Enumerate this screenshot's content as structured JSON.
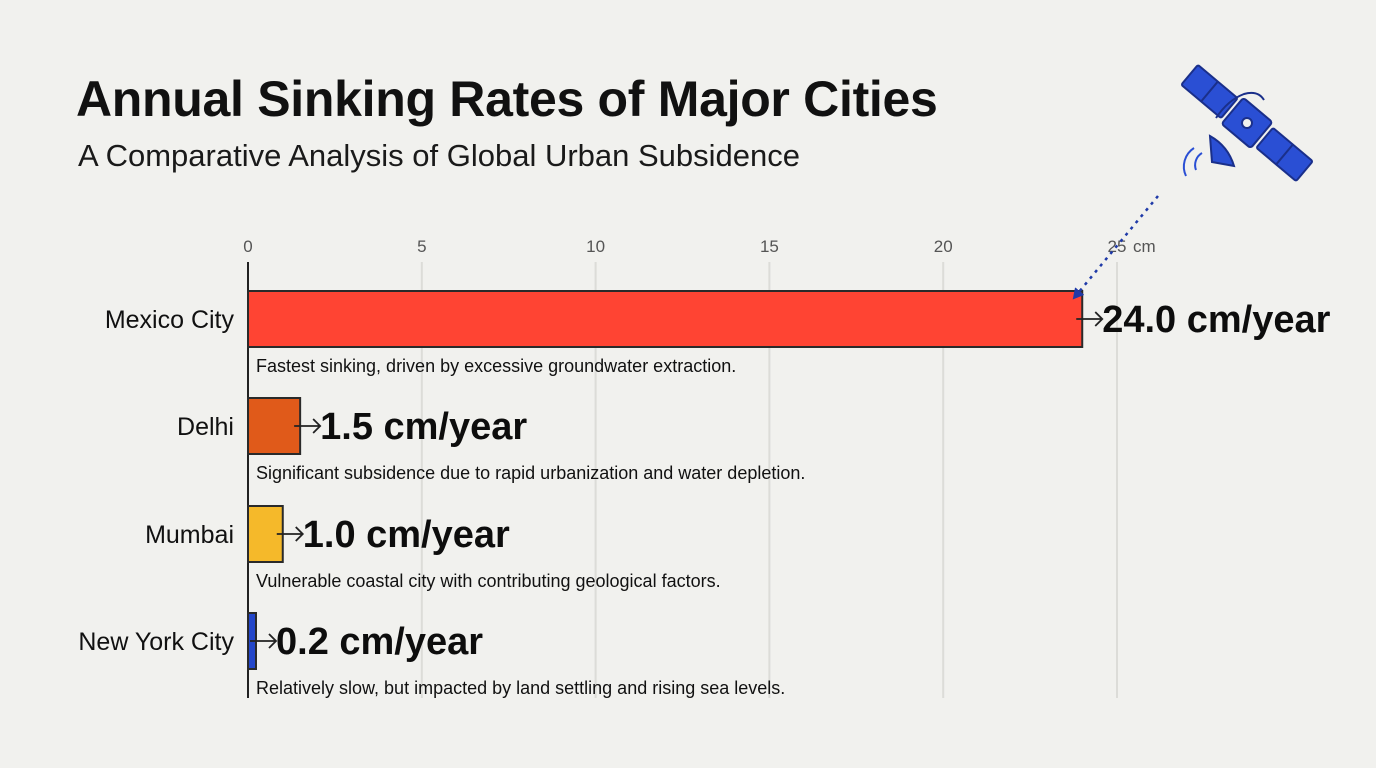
{
  "chart_data": {
    "type": "bar",
    "orientation": "horizontal",
    "title": "Annual Sinking Rates of Major Cities",
    "subtitle": "A Comparative Analysis of Global Urban Subsidence",
    "xlim": [
      0,
      25
    ],
    "xticks": [
      0,
      5,
      10,
      15,
      20,
      25
    ],
    "xtick_labels": [
      "0",
      "5",
      "10",
      "15",
      "20",
      "25"
    ],
    "x_unit_label": "cm",
    "grid": true,
    "categories": [
      "Mexico City",
      "Delhi",
      "Mumbai",
      "New York City"
    ],
    "values": [
      24.0,
      1.5,
      1.0,
      0.2
    ],
    "value_labels": [
      "24.0 cm/year",
      "1.5 cm/year",
      "1.0 cm/year",
      "0.2 cm/year"
    ],
    "annotations": [
      "Fastest sinking, driven by excessive groundwater extraction.",
      "Significant subsidence due to rapid urbanization and water depletion.",
      "Vulnerable coastal city with contributing geological factors.",
      "Relatively slow, but impacted by land settling and rising sea levels."
    ],
    "colors": [
      "#ff4433",
      "#e05a1a",
      "#f5b92a",
      "#2346c9"
    ]
  },
  "decorations": {
    "satellite_icon": "satellite-icon",
    "satellite_color": "#2a4fd4"
  }
}
